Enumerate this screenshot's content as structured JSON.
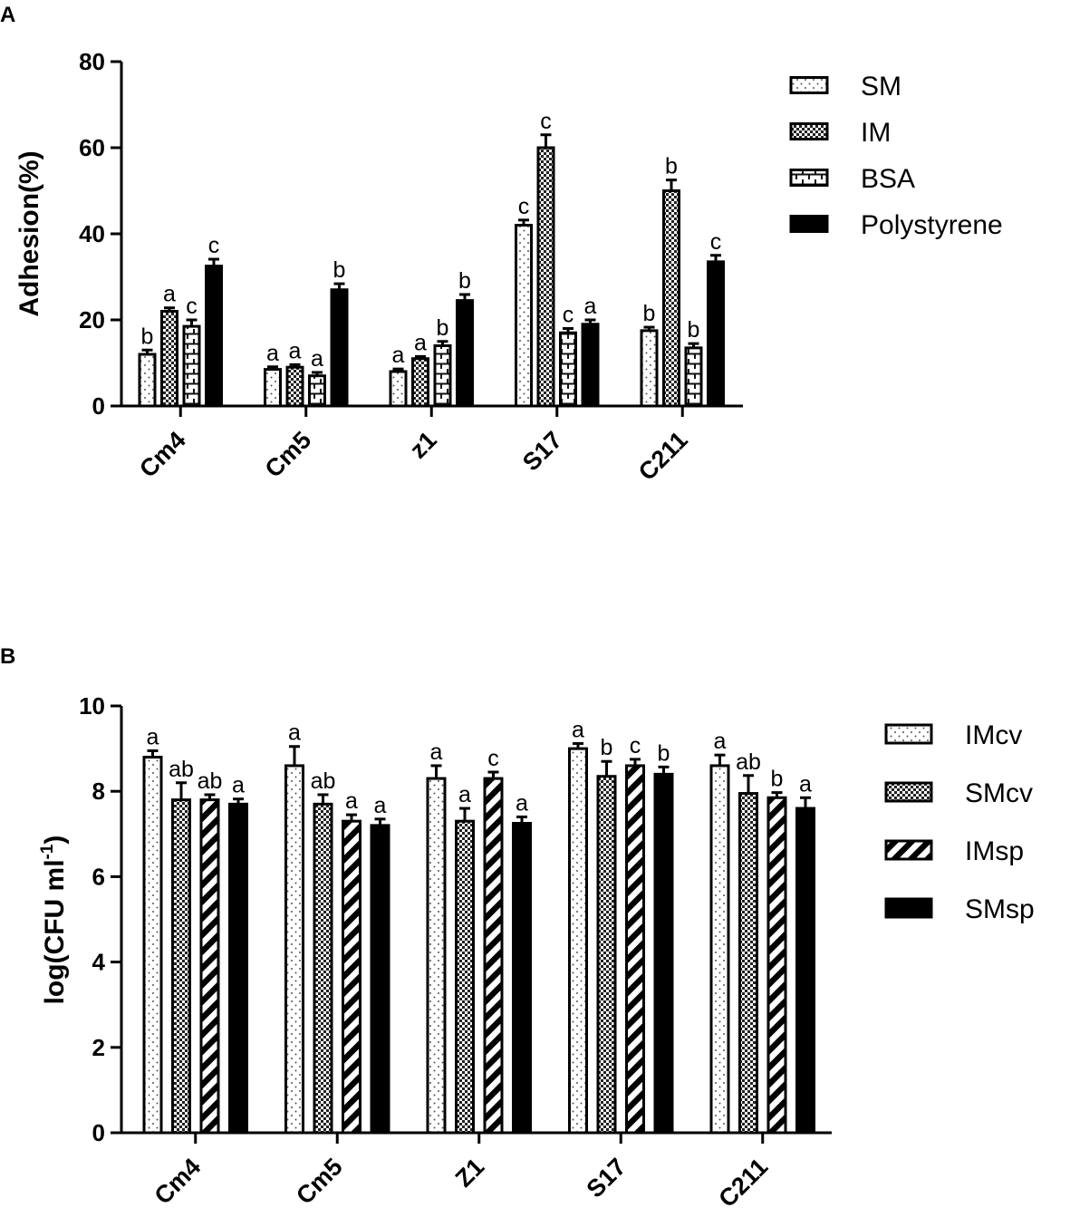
{
  "chart_data": [
    {
      "panel": "A",
      "type": "bar",
      "xlabel": "",
      "ylabel": "Adhesion(%)",
      "ylim": [
        0,
        80
      ],
      "yticks": [
        0,
        20,
        40,
        60,
        80
      ],
      "categories": [
        "Cm4",
        "Cm5",
        "z1",
        "S17",
        "C211"
      ],
      "legend_position": "top-right",
      "series": [
        {
          "name": "SM",
          "pattern": "dots",
          "values": [
            12,
            8.5,
            8,
            42,
            17.5
          ],
          "errors": [
            1,
            0.6,
            0.6,
            1.2,
            0.8
          ],
          "labels": [
            "b",
            "a",
            "a",
            "c",
            "b"
          ]
        },
        {
          "name": "IM",
          "pattern": "checker",
          "values": [
            22,
            9,
            11,
            60,
            50
          ],
          "errors": [
            0.8,
            0.6,
            0.5,
            3,
            2.5
          ],
          "labels": [
            "a",
            "a",
            "a",
            "c",
            "b"
          ]
        },
        {
          "name": "BSA",
          "pattern": "brick",
          "values": [
            18.5,
            7,
            14,
            17,
            13.5
          ],
          "errors": [
            1.5,
            0.8,
            1,
            1,
            1
          ],
          "labels": [
            "c",
            "a",
            "b",
            "c",
            "b"
          ]
        },
        {
          "name": "Polystyrene",
          "pattern": "solid",
          "values": [
            32.5,
            27,
            24.5,
            19,
            33.5
          ],
          "errors": [
            1.6,
            1.4,
            1.4,
            1,
            1.5
          ],
          "labels": [
            "c",
            "b",
            "b",
            "a",
            "c"
          ]
        }
      ]
    },
    {
      "panel": "B",
      "type": "bar",
      "xlabel": "",
      "ylabel": "log(CFU ml",
      "ylabel_sup": "-1",
      "ylabel_close": ")",
      "ylim": [
        0,
        10
      ],
      "yticks": [
        0,
        2,
        4,
        6,
        8,
        10
      ],
      "categories": [
        "Cm4",
        "Cm5",
        "Z1",
        "S17",
        "C211"
      ],
      "legend_position": "top-right",
      "series": [
        {
          "name": "IMcv",
          "pattern": "dots",
          "values": [
            8.8,
            8.6,
            8.3,
            9.0,
            8.6
          ],
          "errors": [
            0.15,
            0.45,
            0.3,
            0.12,
            0.25
          ],
          "labels": [
            "a",
            "a",
            "a",
            "a",
            "a"
          ]
        },
        {
          "name": "SMcv",
          "pattern": "checker",
          "values": [
            7.8,
            7.7,
            7.3,
            8.35,
            7.95
          ],
          "errors": [
            0.4,
            0.22,
            0.3,
            0.35,
            0.42
          ],
          "labels": [
            "ab",
            "ab",
            "a",
            "b",
            "ab"
          ]
        },
        {
          "name": "IMsp",
          "pattern": "diag",
          "values": [
            7.8,
            7.3,
            8.3,
            8.6,
            7.85
          ],
          "errors": [
            0.12,
            0.15,
            0.15,
            0.15,
            0.12
          ],
          "labels": [
            "ab",
            "a",
            "c",
            "c",
            "b"
          ]
        },
        {
          "name": "SMsp",
          "pattern": "solid",
          "values": [
            7.7,
            7.2,
            7.25,
            8.4,
            7.6
          ],
          "errors": [
            0.12,
            0.15,
            0.15,
            0.17,
            0.25
          ],
          "labels": [
            "a",
            "a",
            "a",
            "b",
            "a"
          ]
        }
      ]
    }
  ]
}
